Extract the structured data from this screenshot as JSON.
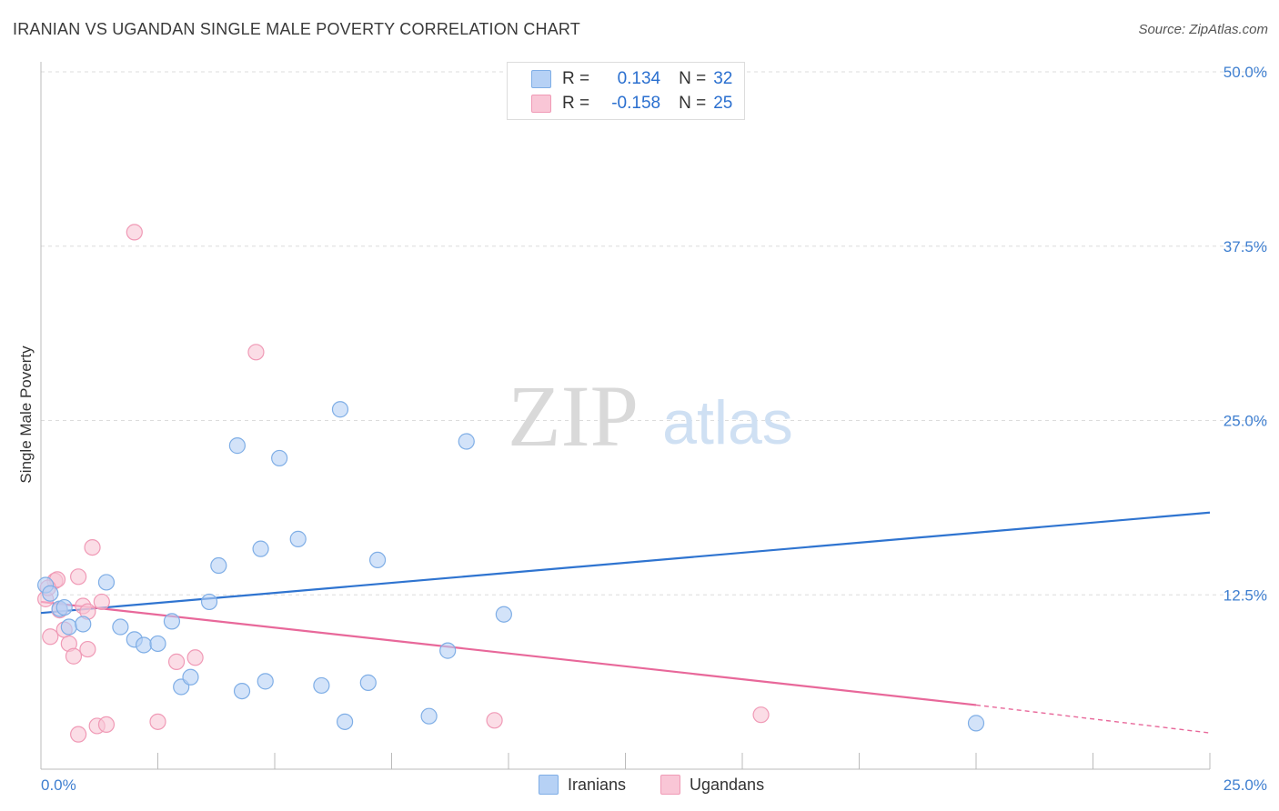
{
  "header": {
    "title": "IRANIAN VS UGANDAN SINGLE MALE POVERTY CORRELATION CHART",
    "source": "Source: ZipAtlas.com"
  },
  "legend": {
    "rows": [
      {
        "r_label": "R =",
        "r_value": "0.134",
        "n_label": "N =",
        "n_value": "32"
      },
      {
        "r_label": "R =",
        "r_value": "-0.158",
        "n_label": "N =",
        "n_value": "25"
      }
    ]
  },
  "bottom_legend": [
    "Iranians",
    "Ugandans"
  ],
  "watermark": {
    "part1": "ZIP",
    "part2": "atlas"
  },
  "colors": {
    "iranians_fill": "#b6d1f5",
    "iranians_stroke": "#7faee6",
    "iranians_line": "#2f74d0",
    "ugandans_fill": "#f9c6d6",
    "ugandans_stroke": "#f09ab6",
    "ugandans_line": "#e8689a",
    "tick_text": "#3f7fd0"
  },
  "chart_data": {
    "type": "scatter",
    "title": "IRANIAN VS UGANDAN SINGLE MALE POVERTY CORRELATION CHART",
    "ylabel": "Single Male Poverty",
    "xlabel": "",
    "xlim": [
      0,
      25
    ],
    "ylim": [
      0,
      50
    ],
    "x_tick_labels": [
      "0.0%",
      "25.0%"
    ],
    "y_ticks": [
      12.5,
      25.0,
      37.5,
      50.0
    ],
    "y_tick_labels": [
      "12.5%",
      "25.0%",
      "37.5%",
      "50.0%"
    ],
    "grid": "horizontal dashed",
    "legend_placement": "top-center",
    "series": [
      {
        "name": "Iranians",
        "r": 0.134,
        "n": 32,
        "trend": {
          "x": [
            0,
            25
          ],
          "y": [
            11.2,
            18.4
          ]
        },
        "points": [
          [
            0.1,
            13.2
          ],
          [
            0.4,
            11.5
          ],
          [
            0.6,
            10.2
          ],
          [
            0.9,
            10.4
          ],
          [
            1.4,
            13.4
          ],
          [
            1.7,
            10.2
          ],
          [
            2.0,
            9.3
          ],
          [
            2.2,
            8.9
          ],
          [
            2.5,
            9.0
          ],
          [
            2.8,
            10.6
          ],
          [
            3.0,
            5.9
          ],
          [
            3.2,
            6.6
          ],
          [
            3.6,
            12.0
          ],
          [
            3.8,
            14.6
          ],
          [
            4.2,
            23.2
          ],
          [
            4.3,
            5.6
          ],
          [
            4.7,
            15.8
          ],
          [
            4.8,
            6.3
          ],
          [
            5.1,
            22.3
          ],
          [
            5.5,
            16.5
          ],
          [
            6.0,
            6.0
          ],
          [
            6.4,
            25.8
          ],
          [
            6.5,
            3.4
          ],
          [
            7.0,
            6.2
          ],
          [
            7.2,
            15.0
          ],
          [
            8.3,
            3.8
          ],
          [
            8.7,
            8.5
          ],
          [
            9.1,
            23.5
          ],
          [
            9.9,
            11.1
          ],
          [
            20.0,
            3.3
          ],
          [
            0.2,
            12.6
          ],
          [
            0.5,
            11.6
          ]
        ]
      },
      {
        "name": "Ugandans",
        "r": -0.158,
        "n": 25,
        "trend": {
          "x": [
            0,
            20.0
          ],
          "y": [
            12.0,
            4.6
          ]
        },
        "trend_dashed": {
          "x": [
            20.0,
            25
          ],
          "y": [
            4.6,
            2.6
          ]
        },
        "points": [
          [
            0.1,
            12.2
          ],
          [
            0.2,
            9.5
          ],
          [
            0.3,
            13.5
          ],
          [
            0.4,
            11.4
          ],
          [
            0.5,
            10.0
          ],
          [
            0.6,
            9.0
          ],
          [
            0.7,
            8.1
          ],
          [
            0.8,
            2.5
          ],
          [
            0.8,
            13.8
          ],
          [
            0.9,
            11.7
          ],
          [
            1.0,
            8.6
          ],
          [
            1.0,
            11.3
          ],
          [
            1.1,
            15.9
          ],
          [
            1.2,
            3.1
          ],
          [
            1.3,
            12.0
          ],
          [
            1.4,
            3.2
          ],
          [
            2.0,
            38.5
          ],
          [
            2.5,
            3.4
          ],
          [
            2.9,
            7.7
          ],
          [
            3.3,
            8.0
          ],
          [
            4.6,
            29.9
          ],
          [
            9.7,
            3.5
          ],
          [
            15.4,
            3.9
          ],
          [
            0.35,
            13.6
          ],
          [
            0.15,
            13.0
          ]
        ]
      }
    ]
  }
}
